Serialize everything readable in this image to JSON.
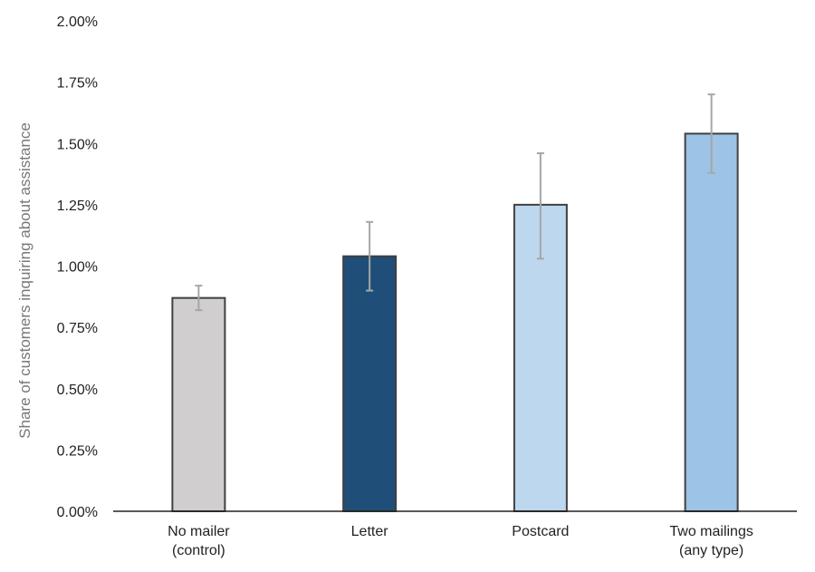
{
  "chart_data": {
    "type": "bar",
    "title": "",
    "xlabel": "",
    "ylabel": "Share of customers inquiring about assistance",
    "ylim": [
      0,
      2.0
    ],
    "y_ticks": [
      "0.00%",
      "0.25%",
      "0.50%",
      "0.75%",
      "1.00%",
      "1.25%",
      "1.50%",
      "1.75%",
      "2.00%"
    ],
    "categories": [
      [
        "No mailer",
        "(control)"
      ],
      [
        "Letter"
      ],
      [
        "Postcard"
      ],
      [
        "Two mailings",
        "(any type)"
      ]
    ],
    "values": [
      0.87,
      1.04,
      1.25,
      1.54
    ],
    "error_low": [
      0.82,
      0.9,
      1.03,
      1.38
    ],
    "error_high": [
      0.92,
      1.18,
      1.46,
      1.7
    ],
    "unit": "%",
    "grid": false,
    "legend": "none",
    "colors": [
      "#d0cece",
      "#1f4e79",
      "#bdd7ee",
      "#9dc3e6"
    ],
    "bar_edge_color": "#404040",
    "error_bar_color": "#a6a6a6"
  }
}
